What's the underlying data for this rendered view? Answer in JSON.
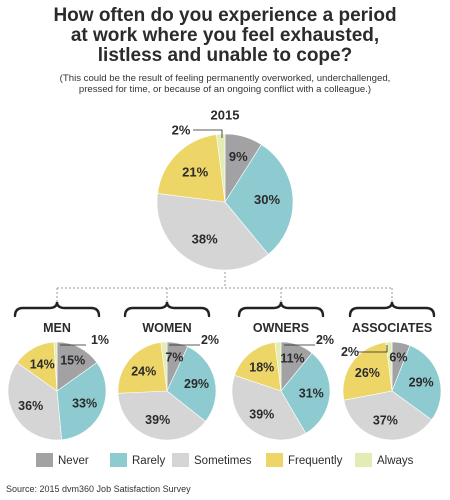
{
  "title_line1": "How often do you experience a period",
  "title_line2": "at work where you feel exhausted,",
  "title_line3": "listless and unable to cope?",
  "subtitle_line1": "(This could be the result of feeling permanently overworked, underchallenged,",
  "subtitle_line2": "pressed for time, or because of an ongoing conflict with a colleague.)",
  "source": "Source: 2015 dvm360 Job Satisfaction Survey",
  "colors": {
    "Never": "#a2a1a4",
    "Rarely": "#8ecbd0",
    "Sometimes": "#d6d5d6",
    "Frequently": "#eed568",
    "Always": "#e3ecb2"
  },
  "chart_data": {
    "type": "pie",
    "categories": [
      "Never",
      "Rarely",
      "Sometimes",
      "Frequently",
      "Always"
    ],
    "legend_position": "bottom",
    "pies": [
      {
        "title": "2015",
        "values": [
          9,
          30,
          38,
          21,
          2
        ]
      },
      {
        "title": "MEN",
        "values": [
          15,
          33,
          36,
          14,
          1
        ]
      },
      {
        "title": "WOMEN",
        "values": [
          7,
          29,
          39,
          24,
          2
        ]
      },
      {
        "title": "OWNERS",
        "values": [
          11,
          31,
          39,
          18,
          2
        ]
      },
      {
        "title": "ASSOCIATES",
        "values": [
          6,
          29,
          37,
          26,
          2
        ]
      }
    ]
  }
}
